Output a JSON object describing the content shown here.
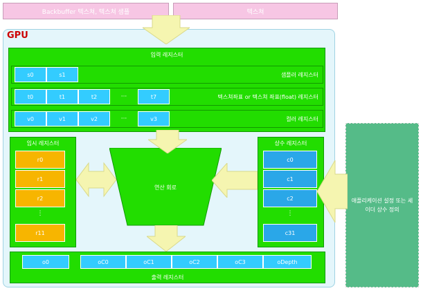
{
  "top": {
    "left_label": "Backbuffer 텍스쳐, 텍스쳐 샘플",
    "right_label": "텍스쳐"
  },
  "gpu": {
    "title": "GPU",
    "input_register_title": "입력 레지스터",
    "sampler_register_label": "샘플러 레지스터",
    "sampler_cells": [
      "s0",
      "s1"
    ],
    "texcoord_register_label": "텍스쳐좌표 or 텍스쳐 좌표(float) 레지스터",
    "texcoord_cells": [
      "t0",
      "t1",
      "t2",
      "t7"
    ],
    "texcoord_dots": "···",
    "color_register_label": "컬러 레지스터",
    "color_cells": [
      "v0",
      "v1",
      "v2",
      "v3"
    ],
    "color_dots": "···",
    "temp_register_title": "임시 레지스터",
    "temp_cells": [
      "r0",
      "r1",
      "r2",
      "r11"
    ],
    "temp_dots": "⋮",
    "const_register_title": "상수 레지스터",
    "const_cells": [
      "c0",
      "c1",
      "c2",
      "c31"
    ],
    "const_dots": "⋮",
    "alu_label": "연산 회로",
    "output_cells_left": [
      "o0"
    ],
    "output_cells_right": [
      "oC0",
      "oC1",
      "oC2",
      "oC3",
      "oDepth"
    ],
    "output_register_label": "출력 레지스터"
  },
  "external_note": "애플리케이션 설정 또는 셰이더 상수 정의",
  "colors": {
    "green": "#22dd00",
    "cyan": "#33ccff",
    "blue": "#2aa7e8",
    "orange": "#f7b500",
    "pink": "#f7c6e4",
    "arrow": "#f5f5b0",
    "teal": "#55bb88",
    "gpu_red": "#cc0000"
  }
}
